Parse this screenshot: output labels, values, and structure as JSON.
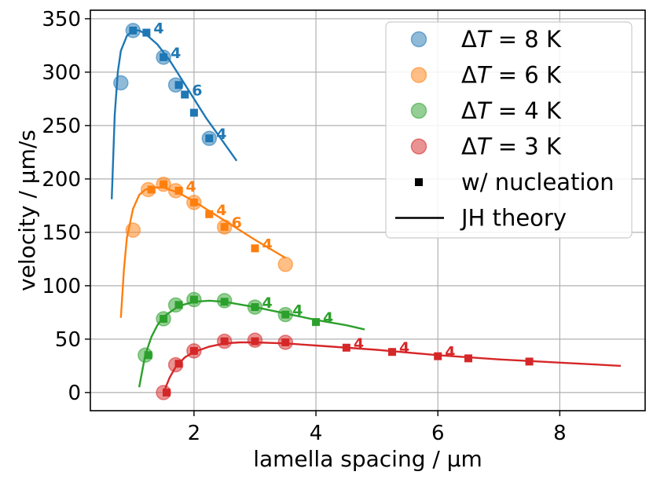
{
  "chart_data": {
    "type": "scatter",
    "xlabel": "lamella spacing / µm",
    "ylabel": "velocity / µm/s",
    "xlim": [
      0.3,
      9.4
    ],
    "ylim": [
      -17,
      358
    ],
    "xticks": [
      2,
      4,
      6,
      8
    ],
    "yticks": [
      0,
      50,
      100,
      150,
      200,
      250,
      300,
      350
    ],
    "grid": true,
    "legend_position": "top-right",
    "series": [
      {
        "name": "ΔT = 8 K",
        "label_prefix": "Δ",
        "label_var": "T",
        "label_suffix": " = 8 K",
        "color": "#1f77b4",
        "circles": [
          [
            0.8,
            290
          ],
          [
            1.0,
            339
          ],
          [
            1.5,
            314
          ],
          [
            1.7,
            288
          ],
          [
            2.25,
            238
          ]
        ],
        "squares": [
          [
            1.0,
            339
          ],
          [
            1.22,
            337
          ],
          [
            1.5,
            314
          ],
          [
            1.75,
            288
          ],
          [
            1.85,
            279
          ],
          [
            2.0,
            262
          ],
          [
            2.25,
            238
          ]
        ],
        "theory": [
          [
            0.65,
            181
          ],
          [
            0.7,
            260
          ],
          [
            0.75,
            300
          ],
          [
            0.8,
            320
          ],
          [
            0.9,
            334
          ],
          [
            1.0,
            339
          ],
          [
            1.1,
            339
          ],
          [
            1.2,
            336
          ],
          [
            1.4,
            326
          ],
          [
            1.6,
            311
          ],
          [
            1.8,
            293
          ],
          [
            2.0,
            275
          ],
          [
            2.2,
            257
          ],
          [
            2.4,
            241
          ],
          [
            2.7,
            217
          ]
        ],
        "annotations": [
          {
            "x": 1.22,
            "y": 337,
            "text": "4"
          },
          {
            "x": 1.5,
            "y": 314,
            "text": "4"
          },
          {
            "x": 1.85,
            "y": 279,
            "text": "6"
          },
          {
            "x": 2.25,
            "y": 238,
            "text": "4"
          }
        ]
      },
      {
        "name": "ΔT = 6 K",
        "label_prefix": "Δ",
        "label_var": "T",
        "label_suffix": " = 6 K",
        "color": "#ff7f0e",
        "circles": [
          [
            1.0,
            152
          ],
          [
            1.25,
            190
          ],
          [
            1.5,
            195
          ],
          [
            1.7,
            189
          ],
          [
            2.0,
            178
          ],
          [
            2.5,
            155
          ],
          [
            3.5,
            120
          ]
        ],
        "squares": [
          [
            1.3,
            190
          ],
          [
            1.5,
            195
          ],
          [
            1.75,
            189
          ],
          [
            2.0,
            178
          ],
          [
            2.25,
            167
          ],
          [
            2.5,
            155
          ],
          [
            3.0,
            135
          ]
        ],
        "theory": [
          [
            0.8,
            70
          ],
          [
            0.85,
            115
          ],
          [
            0.9,
            145
          ],
          [
            1.0,
            172
          ],
          [
            1.1,
            185
          ],
          [
            1.2,
            190
          ],
          [
            1.35,
            192
          ],
          [
            1.5,
            192
          ],
          [
            1.75,
            187
          ],
          [
            2.0,
            179
          ],
          [
            2.5,
            161
          ],
          [
            3.0,
            143
          ],
          [
            3.5,
            126
          ]
        ],
        "annotations": [
          {
            "x": 1.75,
            "y": 189,
            "text": "4"
          },
          {
            "x": 2.25,
            "y": 167,
            "text": "4"
          },
          {
            "x": 2.5,
            "y": 155,
            "text": "6"
          },
          {
            "x": 3.0,
            "y": 135,
            "text": "4"
          }
        ]
      },
      {
        "name": "ΔT = 4 K",
        "label_prefix": "Δ",
        "label_var": "T",
        "label_suffix": " = 4 K",
        "color": "#2ca02c",
        "circles": [
          [
            1.2,
            35
          ],
          [
            1.5,
            69
          ],
          [
            1.7,
            82
          ],
          [
            2.0,
            87
          ],
          [
            2.5,
            86
          ],
          [
            3.0,
            80
          ],
          [
            3.5,
            73
          ]
        ],
        "squares": [
          [
            1.25,
            35
          ],
          [
            1.5,
            69
          ],
          [
            1.75,
            82
          ],
          [
            2.0,
            87
          ],
          [
            2.5,
            85
          ],
          [
            3.0,
            80
          ],
          [
            3.5,
            73
          ],
          [
            4.0,
            66
          ]
        ],
        "theory": [
          [
            1.1,
            5
          ],
          [
            1.2,
            35
          ],
          [
            1.3,
            52
          ],
          [
            1.4,
            63
          ],
          [
            1.5,
            71
          ],
          [
            1.75,
            81
          ],
          [
            2.0,
            85
          ],
          [
            2.25,
            86
          ],
          [
            2.5,
            85
          ],
          [
            3.0,
            80
          ],
          [
            3.5,
            74
          ],
          [
            4.0,
            68
          ],
          [
            4.5,
            63
          ],
          [
            4.8,
            59
          ]
        ],
        "annotations": [
          {
            "x": 3.0,
            "y": 80,
            "text": "4"
          },
          {
            "x": 3.5,
            "y": 73,
            "text": "4"
          },
          {
            "x": 4.0,
            "y": 66,
            "text": "4"
          }
        ]
      },
      {
        "name": "ΔT = 3 K",
        "label_prefix": "Δ",
        "label_var": "T",
        "label_suffix": " = 3 K",
        "color": "#d62728",
        "circles": [
          [
            1.5,
            0
          ],
          [
            1.7,
            26
          ],
          [
            2.0,
            39
          ],
          [
            2.5,
            48
          ],
          [
            3.0,
            49
          ],
          [
            3.5,
            47
          ]
        ],
        "squares": [
          [
            1.55,
            0
          ],
          [
            1.75,
            27
          ],
          [
            2.0,
            39
          ],
          [
            2.5,
            48
          ],
          [
            3.0,
            48
          ],
          [
            3.5,
            47
          ],
          [
            4.5,
            42
          ],
          [
            5.25,
            38
          ],
          [
            6.0,
            34
          ],
          [
            6.5,
            32
          ],
          [
            7.5,
            29
          ]
        ],
        "theory": [
          [
            1.5,
            0
          ],
          [
            1.6,
            14
          ],
          [
            1.7,
            24
          ],
          [
            1.85,
            33
          ],
          [
            2.0,
            38
          ],
          [
            2.25,
            43
          ],
          [
            2.5,
            46
          ],
          [
            2.75,
            47
          ],
          [
            3.0,
            47
          ],
          [
            3.5,
            46
          ],
          [
            4.0,
            44
          ],
          [
            5.0,
            40
          ],
          [
            6.0,
            35
          ],
          [
            7.0,
            31
          ],
          [
            8.0,
            28
          ],
          [
            9.0,
            25
          ]
        ],
        "annotations": [
          {
            "x": 4.5,
            "y": 42,
            "text": "4"
          },
          {
            "x": 5.25,
            "y": 38,
            "text": "4"
          },
          {
            "x": 6.0,
            "y": 34,
            "text": "4"
          }
        ]
      }
    ],
    "legend_extra": {
      "nucleation_label": "w/ nucleation",
      "theory_label": "JH theory"
    }
  }
}
